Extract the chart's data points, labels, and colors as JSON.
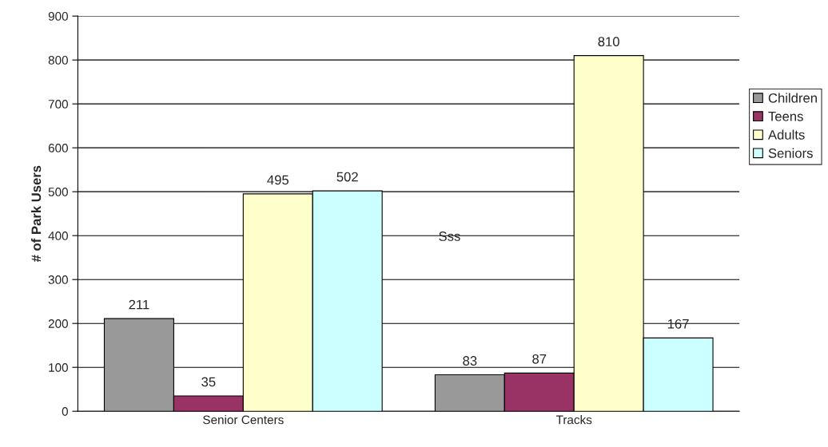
{
  "chart_data": {
    "type": "bar",
    "ylabel": "# of Park Users",
    "categories": [
      "Senior Centers",
      "Tracks"
    ],
    "series": [
      {
        "name": "Children",
        "color": "#999999",
        "values": [
          211,
          83
        ]
      },
      {
        "name": "Teens",
        "color": "#993366",
        "values": [
          35,
          87
        ]
      },
      {
        "name": "Adults",
        "color": "#ffffcc",
        "values": [
          495,
          810
        ]
      },
      {
        "name": "Seniors",
        "color": "#ccffff",
        "values": [
          502,
          167
        ]
      }
    ],
    "ylim": [
      0,
      900
    ],
    "yticks": [
      0,
      100,
      200,
      300,
      400,
      500,
      600,
      700,
      800,
      900
    ],
    "grid": "y",
    "legend": "right",
    "data_labels": true,
    "annotations": [
      "Sss"
    ]
  }
}
